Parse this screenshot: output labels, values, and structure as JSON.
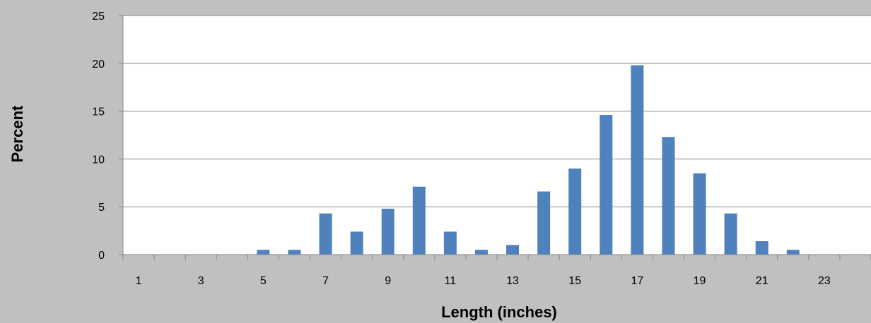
{
  "chart_data": {
    "type": "bar",
    "title": "",
    "xlabel": "Length (inches)",
    "ylabel": "Percent",
    "categories": [
      1,
      2,
      3,
      4,
      5,
      6,
      7,
      8,
      9,
      10,
      11,
      12,
      13,
      14,
      15,
      16,
      17,
      18,
      19,
      20,
      21,
      22,
      23,
      24
    ],
    "x_tick_labels": [
      "1",
      "3",
      "5",
      "7",
      "9",
      "11",
      "13",
      "15",
      "17",
      "19",
      "21",
      "23"
    ],
    "y_tick_labels": [
      "0",
      "5",
      "10",
      "15",
      "20",
      "25"
    ],
    "values": [
      0,
      0,
      0,
      0,
      0.5,
      0.5,
      4.3,
      2.4,
      4.8,
      7.1,
      2.4,
      0.5,
      1.0,
      6.6,
      9.0,
      14.6,
      19.8,
      12.3,
      8.5,
      4.3,
      1.4,
      0.5,
      0,
      0
    ],
    "ylim": [
      0,
      25
    ],
    "grid": true,
    "legend": "none",
    "colors": {
      "bar": "#4f81bd",
      "plot_background": "#ffffff",
      "page_background": "#c0c0c0",
      "gridline": "#888888"
    }
  }
}
